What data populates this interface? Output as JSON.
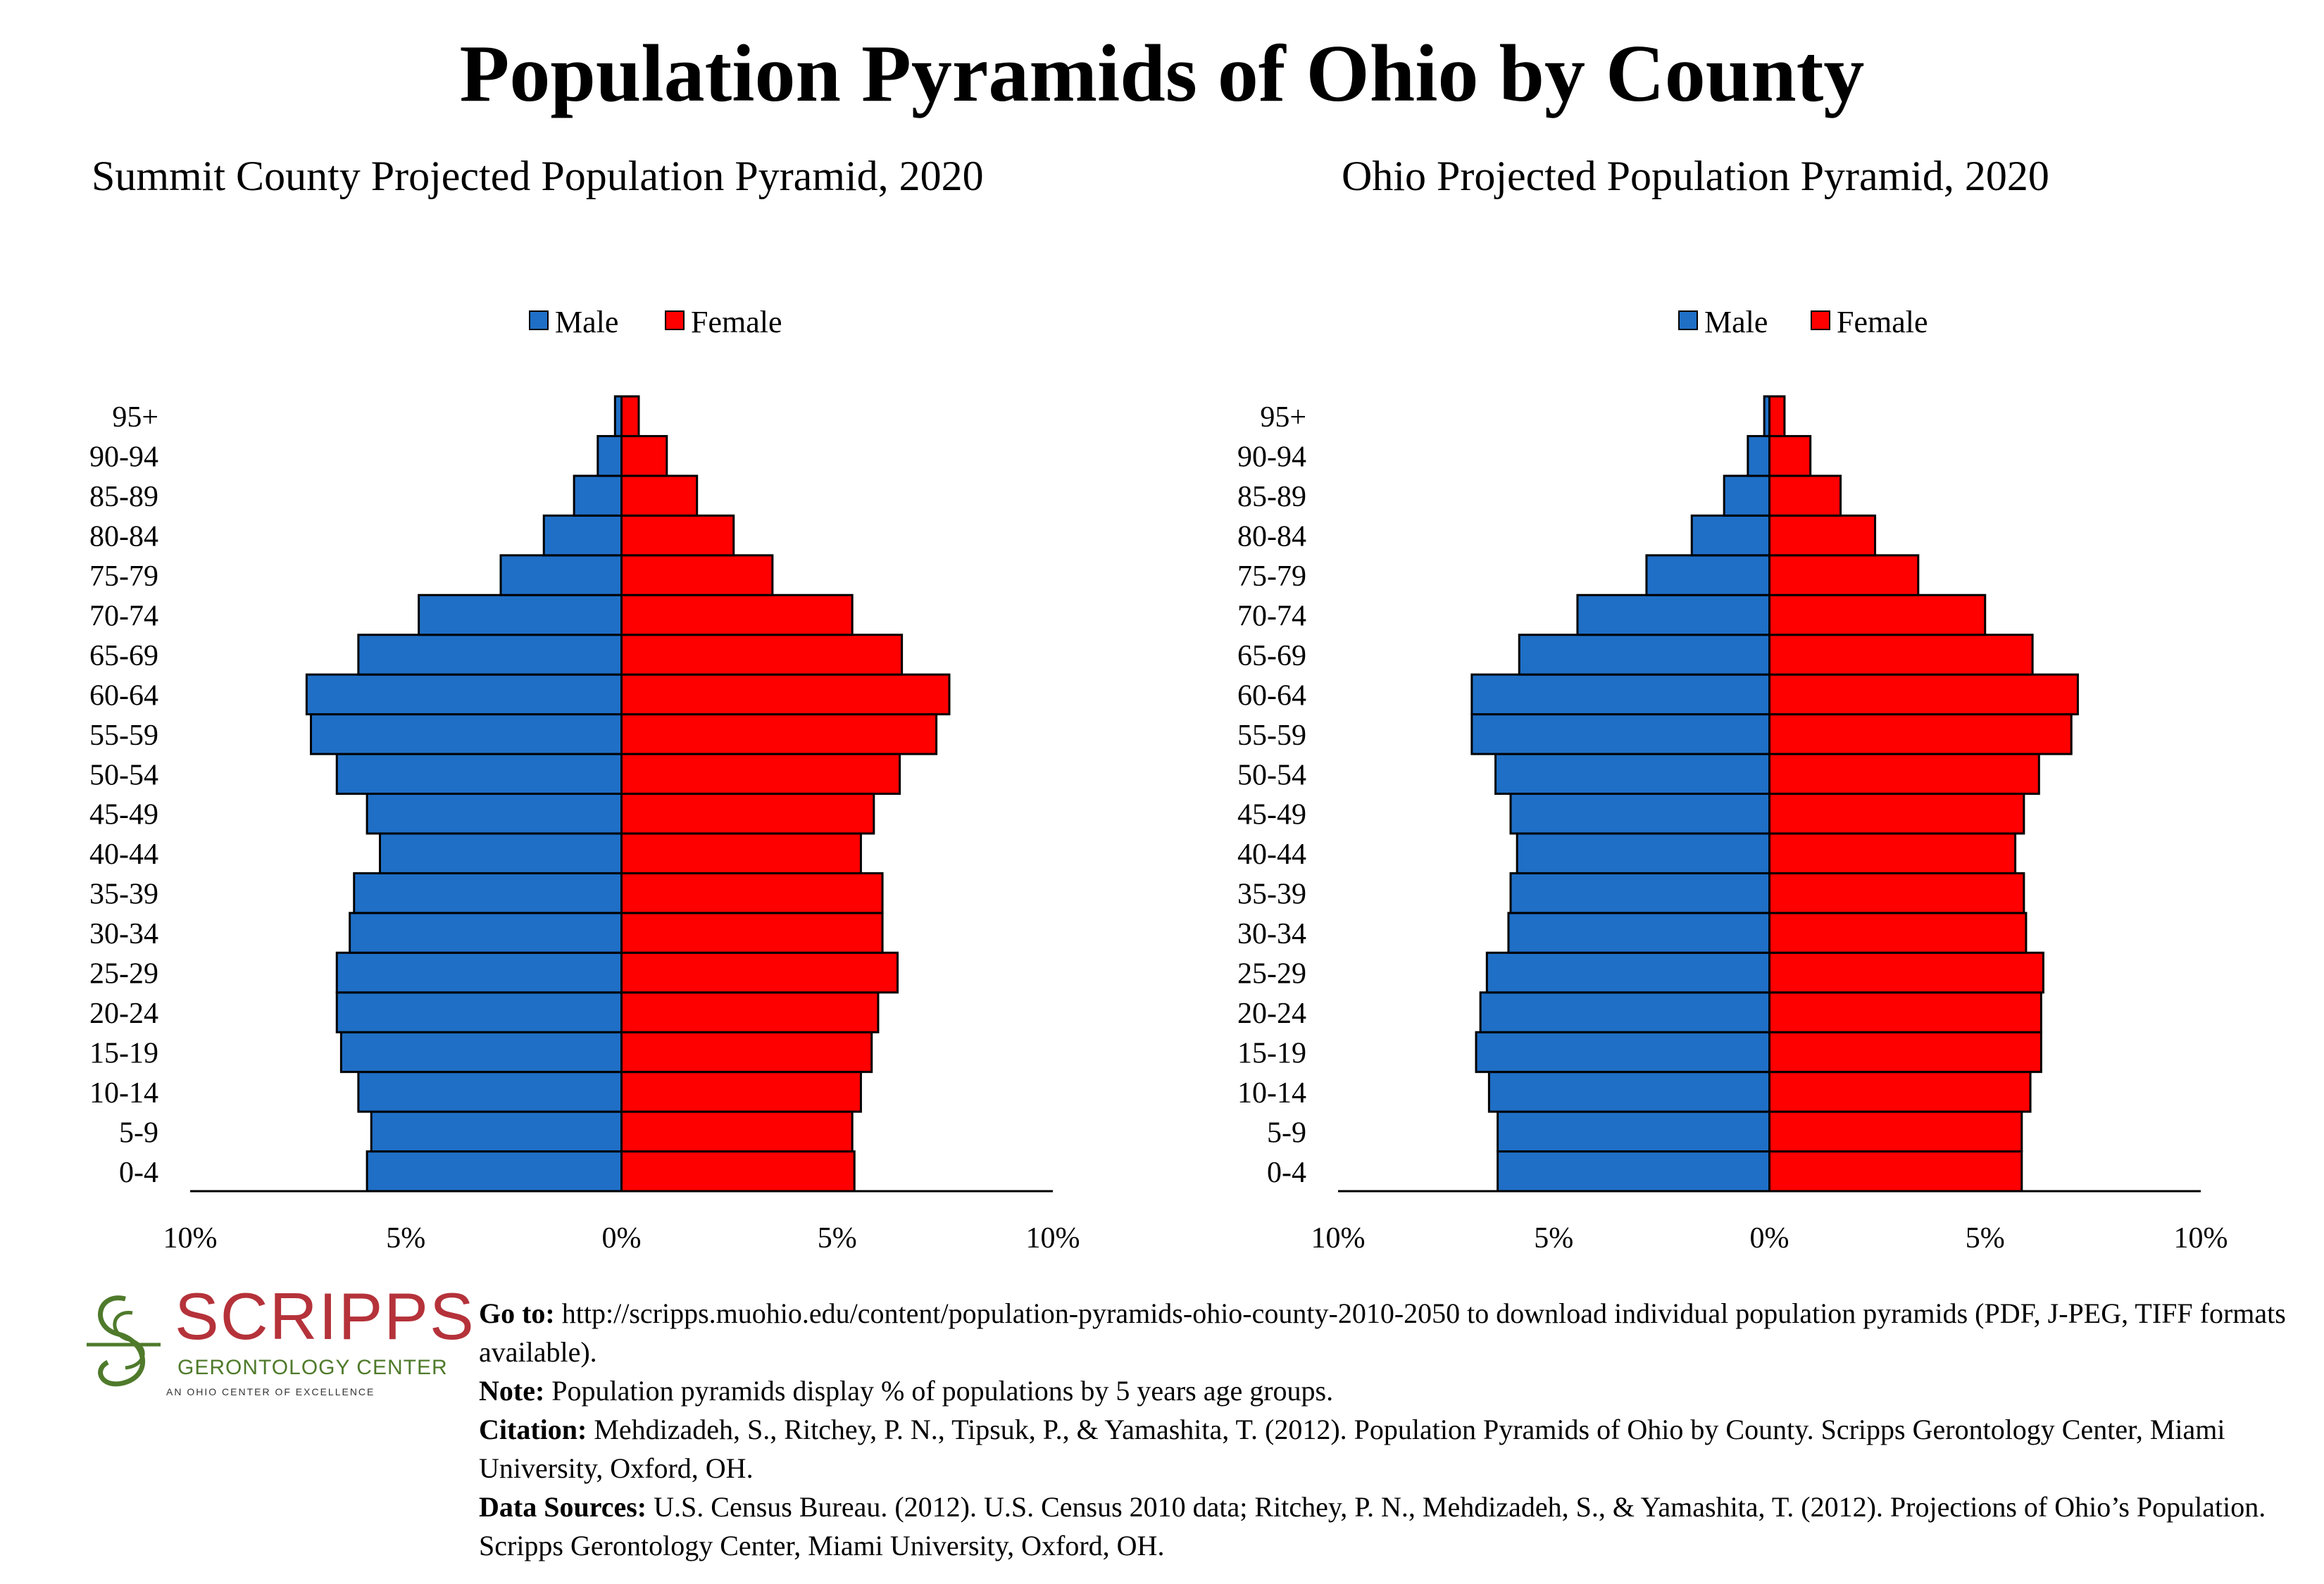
{
  "title": "Population Pyramids of Ohio by County",
  "colors": {
    "male": "#1f6fc6",
    "female": "#ff0000",
    "outline": "#000000"
  },
  "legend": {
    "male": "Male",
    "female": "Female"
  },
  "age_groups": [
    "0-4",
    "5-9",
    "10-14",
    "15-19",
    "20-24",
    "25-29",
    "30-34",
    "35-39",
    "40-44",
    "45-49",
    "50-54",
    "55-59",
    "60-64",
    "65-69",
    "70-74",
    "75-79",
    "80-84",
    "85-89",
    "90-94",
    "95+"
  ],
  "x_ticks": [
    "10%",
    "5%",
    "0%",
    "5%",
    "10%"
  ],
  "chart_data": [
    {
      "type": "bar",
      "orientation": "horizontal",
      "title": "Summit County Projected Population Pyramid, 2020",
      "categories": [
        "0-4",
        "5-9",
        "10-14",
        "15-19",
        "20-24",
        "25-29",
        "30-34",
        "35-39",
        "40-44",
        "45-49",
        "50-54",
        "55-59",
        "60-64",
        "65-69",
        "70-74",
        "75-79",
        "80-84",
        "85-89",
        "90-94",
        "95+"
      ],
      "series": [
        {
          "name": "Male",
          "values": [
            5.9,
            5.8,
            6.1,
            6.5,
            6.6,
            6.6,
            6.3,
            6.2,
            5.6,
            5.9,
            6.6,
            7.2,
            7.3,
            6.1,
            4.7,
            2.8,
            1.8,
            1.1,
            0.55,
            0.15
          ]
        },
        {
          "name": "Female",
          "values": [
            5.4,
            5.35,
            5.55,
            5.8,
            5.95,
            6.4,
            6.05,
            6.05,
            5.55,
            5.85,
            6.45,
            7.3,
            7.6,
            6.5,
            5.35,
            3.5,
            2.6,
            1.75,
            1.05,
            0.4
          ]
        }
      ],
      "xlim": [
        -10,
        10
      ],
      "legend_position": "top"
    },
    {
      "type": "bar",
      "orientation": "horizontal",
      "title": "Ohio Projected Population Pyramid, 2020",
      "categories": [
        "0-4",
        "5-9",
        "10-14",
        "15-19",
        "20-24",
        "25-29",
        "30-34",
        "35-39",
        "40-44",
        "45-49",
        "50-54",
        "55-59",
        "60-64",
        "65-69",
        "70-74",
        "75-79",
        "80-84",
        "85-89",
        "90-94",
        "95+"
      ],
      "series": [
        {
          "name": "Male",
          "values": [
            6.3,
            6.3,
            6.5,
            6.8,
            6.7,
            6.55,
            6.05,
            6.0,
            5.85,
            6.0,
            6.35,
            6.9,
            6.9,
            5.8,
            4.45,
            2.85,
            1.8,
            1.05,
            0.5,
            0.12
          ]
        },
        {
          "name": "Female",
          "values": [
            5.85,
            5.85,
            6.05,
            6.3,
            6.3,
            6.35,
            5.95,
            5.9,
            5.7,
            5.9,
            6.25,
            7.0,
            7.15,
            6.1,
            5.0,
            3.45,
            2.45,
            1.65,
            0.95,
            0.35
          ]
        }
      ],
      "xlim": [
        -10,
        10
      ],
      "legend_position": "top"
    }
  ],
  "logo": {
    "name": "SCRIPPS",
    "subtitle": "GERONTOLOGY CENTER",
    "tagline": "AN OHIO CENTER OF EXCELLENCE"
  },
  "notes": {
    "goto_label": "Go to:",
    "goto_text": " http://scripps.muohio.edu/content/population-pyramids-ohio-county-2010-2050 to download individual population pyramids (PDF, J-PEG, TIFF formats available).",
    "note_label": "Note:",
    "note_text": " Population pyramids display % of populations by 5 years age groups.",
    "citation_label": "Citation:",
    "citation_text": " Mehdizadeh, S., Ritchey, P. N., Tipsuk, P., & Yamashita, T. (2012). Population Pyramids of Ohio by County. Scripps Gerontology Center, Miami University, Oxford, OH.",
    "sources_label": "Data Sources:",
    "sources_text": " U.S. Census Bureau. (2012). U.S. Census 2010 data; Ritchey, P. N., Mehdizadeh, S., & Yamashita, T. (2012). Projections of Ohio’s Population. Scripps Gerontology Center, Miami University, Oxford, OH."
  }
}
